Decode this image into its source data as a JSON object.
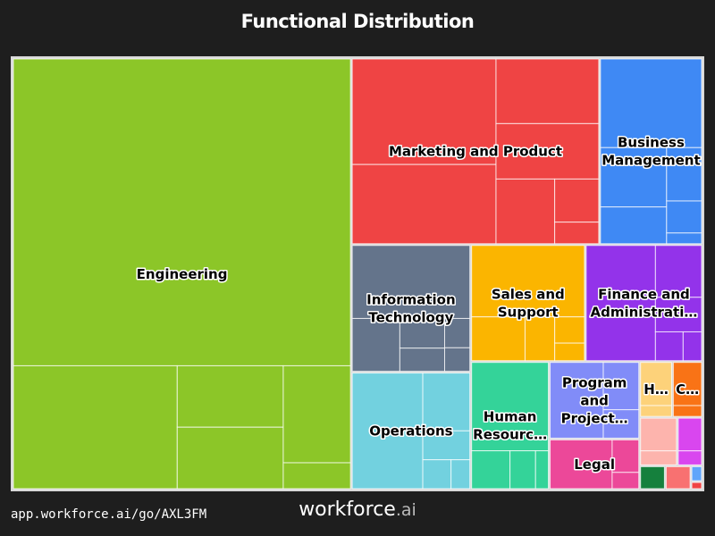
{
  "chart_data": {
    "type": "treemap",
    "title": "Functional Distribution",
    "categories": [
      {
        "name": "Engineering",
        "value": 48.0,
        "color": "#8cc628",
        "children": [
          71.4,
          13.9,
          4.5,
          4.5,
          4.5,
          1.2
        ]
      },
      {
        "name": "Marketing and Product",
        "value": 15.2,
        "color": "#ef4444",
        "children": [
          32.0,
          24.0,
          14.0,
          12.0,
          8.0,
          4.0,
          2.0
        ]
      },
      {
        "name": "Business Management",
        "value": 6.3,
        "color": "#3f89f4",
        "children": [
          48.0,
          21.0,
          13.0,
          10.0,
          6.0,
          2.0
        ]
      },
      {
        "name": "Information Technology",
        "value": 5.0,
        "color": "#64748b",
        "children": [
          58.0,
          17.0,
          9.0,
          7.0,
          5.0,
          4.0
        ]
      },
      {
        "name": "Operations",
        "value": 4.6,
        "color": "#72d1df",
        "children": [
          60.0,
          20.0,
          10.0,
          6.0,
          4.0
        ]
      },
      {
        "name": "Sales and Support",
        "value": 4.4,
        "color": "#fbb500",
        "children": [
          62.0,
          18.0,
          10.0,
          6.0,
          4.0
        ]
      },
      {
        "name": "Finance and Administration",
        "value": 4.5,
        "color": "#9333ea",
        "children": [
          60.0,
          18.0,
          12.0,
          6.0,
          4.0
        ]
      },
      {
        "name": "Human Resources",
        "value": 3.3,
        "color": "#34d399",
        "children": [
          70.0,
          15.0,
          10.0,
          5.0
        ]
      },
      {
        "name": "Program and Project Management",
        "value": 2.3,
        "color": "#818cf8",
        "children": [
          60.0,
          25.0,
          15.0
        ]
      },
      {
        "name": "Legal",
        "value": 1.5,
        "color": "#ec4899",
        "children": [
          70.0,
          20.0,
          10.0
        ]
      },
      {
        "name": "Healthcare",
        "value": 0.6,
        "color": "#fdd27a",
        "children": [
          80.0,
          20.0
        ]
      },
      {
        "name": "Consulting",
        "value": 0.55,
        "color": "#f97316",
        "children": [
          80.0,
          20.0
        ]
      },
      {
        "name": "",
        "value": 0.6,
        "color": "#fdb4ad",
        "children": [
          70.0,
          30.0
        ]
      },
      {
        "name": "",
        "value": 0.4,
        "color": "#d946ef",
        "children": [
          70.0,
          30.0
        ]
      },
      {
        "name": "",
        "value": 0.2,
        "color": "#15803d",
        "children": [
          100.0
        ]
      },
      {
        "name": "",
        "value": 0.2,
        "color": "#f87171",
        "children": [
          100.0
        ]
      },
      {
        "name": "",
        "value": 0.06,
        "color": "#60a5fa",
        "children": [
          100.0
        ]
      },
      {
        "name": "",
        "value": 0.03,
        "color": "#ef4444",
        "children": [
          100.0
        ]
      }
    ]
  },
  "footer": {
    "link": "app.workforce.ai/go/AXL3FM",
    "brand_main": "workforce",
    "brand_suffix": ".ai"
  }
}
